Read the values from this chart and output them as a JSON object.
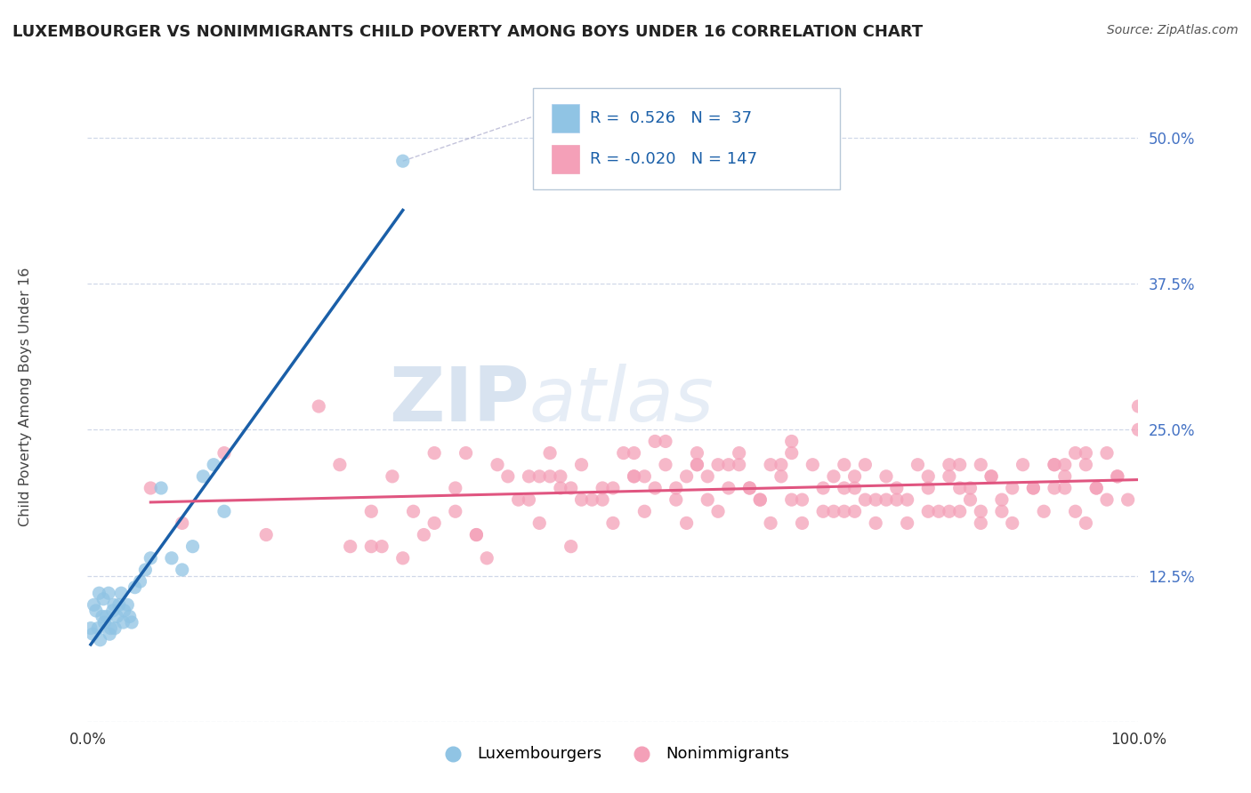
{
  "title": "LUXEMBOURGER VS NONIMMIGRANTS CHILD POVERTY AMONG BOYS UNDER 16 CORRELATION CHART",
  "source": "Source: ZipAtlas.com",
  "ylabel": "Child Poverty Among Boys Under 16",
  "xlim": [
    0,
    100
  ],
  "ylim": [
    0,
    55
  ],
  "ytick_vals": [
    0,
    12.5,
    25.0,
    37.5,
    50.0
  ],
  "ytick_labels": [
    "",
    "12.5%",
    "25.0%",
    "37.5%",
    "50.0%"
  ],
  "xtick_vals": [
    0,
    100
  ],
  "xtick_labels": [
    "0.0%",
    "100.0%"
  ],
  "blue_color": "#90c4e4",
  "pink_color": "#f4a0b8",
  "blue_line_color": "#1a5fa8",
  "pink_line_color": "#e05580",
  "grid_color": "#d0d8e8",
  "tick_color": "#4472c4",
  "r_lux": 0.526,
  "n_lux": 37,
  "r_nonimm": -0.02,
  "n_nonimm": 147,
  "watermark_zip": "ZIP",
  "watermark_atlas": "atlas",
  "lux_x": [
    0.3,
    0.5,
    0.6,
    0.8,
    1.0,
    1.1,
    1.2,
    1.4,
    1.5,
    1.6,
    1.8,
    2.0,
    2.1,
    2.2,
    2.4,
    2.5,
    2.6,
    2.8,
    3.0,
    3.2,
    3.4,
    3.5,
    3.8,
    4.0,
    4.2,
    4.5,
    5.0,
    5.5,
    6.0,
    7.0,
    8.0,
    9.0,
    10.0,
    11.0,
    12.0,
    13.0,
    30.0
  ],
  "lux_y": [
    8.0,
    7.5,
    10.0,
    9.5,
    8.0,
    11.0,
    7.0,
    9.0,
    10.5,
    8.5,
    9.0,
    11.0,
    7.5,
    8.0,
    9.5,
    10.0,
    8.0,
    9.0,
    10.0,
    11.0,
    8.5,
    9.5,
    10.0,
    9.0,
    8.5,
    11.5,
    12.0,
    13.0,
    14.0,
    20.0,
    14.0,
    13.0,
    15.0,
    21.0,
    22.0,
    18.0,
    48.0
  ],
  "nonimm_x": [
    6,
    9,
    13,
    17,
    22,
    24,
    27,
    29,
    31,
    33,
    35,
    37,
    39,
    41,
    43,
    44,
    45,
    46,
    47,
    49,
    50,
    51,
    52,
    53,
    54,
    55,
    56,
    57,
    58,
    59,
    60,
    61,
    62,
    63,
    64,
    65,
    66,
    67,
    68,
    69,
    70,
    71,
    72,
    73,
    74,
    75,
    76,
    77,
    78,
    79,
    80,
    81,
    82,
    83,
    84,
    85,
    86,
    87,
    88,
    89,
    90,
    91,
    92,
    93,
    94,
    95,
    96,
    97,
    98,
    99,
    100,
    30,
    36,
    42,
    48,
    54,
    58,
    63,
    68,
    73,
    78,
    83,
    88,
    93,
    98,
    25,
    35,
    45,
    55,
    65,
    75,
    85,
    95,
    32,
    44,
    56,
    66,
    76,
    86,
    96,
    38,
    50,
    60,
    72,
    82,
    92,
    47,
    57,
    67,
    77,
    87,
    97,
    42,
    52,
    62,
    72,
    82,
    92,
    37,
    49,
    61,
    73,
    83,
    93,
    28,
    40,
    52,
    64,
    74,
    84,
    94,
    33,
    46,
    58,
    70,
    80,
    90,
    100,
    27,
    43,
    59,
    71,
    85,
    95,
    53,
    67,
    80
  ],
  "nonimm_y": [
    20,
    17,
    23,
    16,
    27,
    22,
    15,
    21,
    18,
    23,
    20,
    16,
    22,
    19,
    17,
    23,
    20,
    15,
    22,
    19,
    17,
    23,
    21,
    18,
    20,
    22,
    19,
    17,
    23,
    21,
    18,
    20,
    22,
    20,
    19,
    17,
    21,
    19,
    17,
    22,
    20,
    18,
    22,
    20,
    19,
    17,
    21,
    19,
    17,
    22,
    20,
    18,
    22,
    20,
    19,
    17,
    21,
    19,
    17,
    22,
    20,
    18,
    22,
    20,
    18,
    22,
    20,
    19,
    21,
    19,
    27,
    14,
    23,
    21,
    19,
    24,
    22,
    20,
    19,
    21,
    19,
    18,
    20,
    22,
    21,
    15,
    18,
    21,
    24,
    22,
    19,
    18,
    23,
    16,
    21,
    20,
    22,
    19,
    21,
    20,
    14,
    20,
    22,
    18,
    21,
    20,
    19,
    21,
    24,
    20,
    18,
    23,
    19,
    21,
    23,
    20,
    18,
    22,
    16,
    20,
    22,
    18,
    22,
    21,
    15,
    21,
    23,
    19,
    22,
    20,
    23,
    17,
    20,
    22,
    18,
    21,
    20,
    25,
    18,
    21,
    19,
    21,
    22,
    17,
    21,
    23,
    18
  ]
}
